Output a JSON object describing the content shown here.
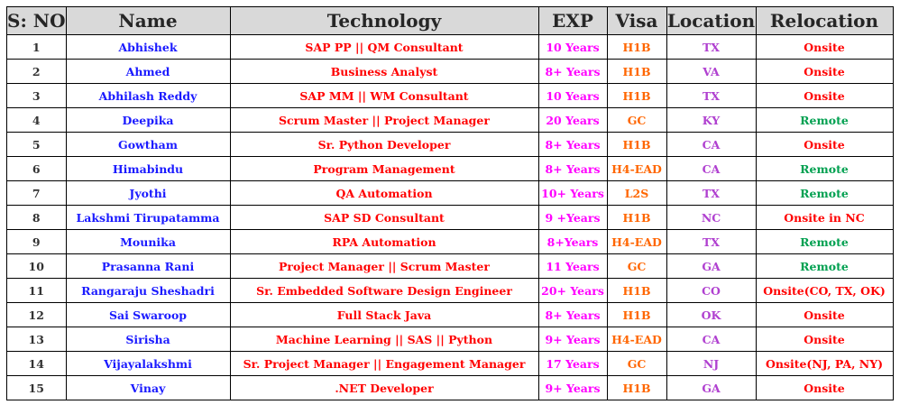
{
  "table": {
    "headers": [
      "S: NO",
      "Name",
      "Technology",
      "EXP",
      "Visa",
      "Location",
      "Relocation"
    ],
    "rows": [
      {
        "sno": "1",
        "name": "Abhishek",
        "tech": "SAP PP || QM Consultant",
        "exp": "10 Years",
        "visa": "H1B",
        "loc": "TX",
        "reloc": "Onsite",
        "reloc_type": "onsite"
      },
      {
        "sno": "2",
        "name": "Ahmed",
        "tech": "Business Analyst",
        "exp": "8+ Years",
        "visa": "H1B",
        "loc": "VA",
        "reloc": "Onsite",
        "reloc_type": "onsite"
      },
      {
        "sno": "3",
        "name": "Abhilash Reddy",
        "tech": "SAP MM || WM Consultant",
        "exp": "10 Years",
        "visa": "H1B",
        "loc": "TX",
        "reloc": "Onsite",
        "reloc_type": "onsite"
      },
      {
        "sno": "4",
        "name": "Deepika",
        "tech": "Scrum Master || Project Manager",
        "exp": "20 Years",
        "visa": "GC",
        "loc": "KY",
        "reloc": "Remote",
        "reloc_type": "remote"
      },
      {
        "sno": "5",
        "name": "Gowtham",
        "tech": "Sr. Python Developer",
        "exp": "8+ Years",
        "visa": "H1B",
        "loc": "CA",
        "reloc": "Onsite",
        "reloc_type": "onsite"
      },
      {
        "sno": "6",
        "name": "Himabindu",
        "tech": "Program Management",
        "exp": "8+ Years",
        "visa": "H4-EAD",
        "loc": "CA",
        "reloc": "Remote",
        "reloc_type": "remote"
      },
      {
        "sno": "7",
        "name": "Jyothi",
        "tech": "QA Automation",
        "exp": "10+ Years",
        "visa": "L2S",
        "loc": "TX",
        "reloc": "Remote",
        "reloc_type": "remote"
      },
      {
        "sno": "8",
        "name": "Lakshmi Tirupatamma",
        "tech": "SAP SD Consultant",
        "exp": "9 +Years",
        "visa": "H1B",
        "loc": "NC",
        "reloc": "Onsite in NC",
        "reloc_type": "onsite"
      },
      {
        "sno": "9",
        "name": "Mounika",
        "tech": "RPA Automation",
        "exp": "8+Years",
        "visa": "H4-EAD",
        "loc": "TX",
        "reloc": "Remote",
        "reloc_type": "remote"
      },
      {
        "sno": "10",
        "name": "Prasanna Rani",
        "tech": "Project Manager || Scrum Master",
        "exp": "11 Years",
        "visa": "GC",
        "loc": "GA",
        "reloc": "Remote",
        "reloc_type": "remote"
      },
      {
        "sno": "11",
        "name": "Rangaraju Sheshadri",
        "tech": "Sr. Embedded Software Design Engineer",
        "exp": "20+ Years",
        "visa": "H1B",
        "loc": "CO",
        "reloc": "Onsite(CO, TX, OK)",
        "reloc_type": "onsite"
      },
      {
        "sno": "12",
        "name": "Sai Swaroop",
        "tech": "Full Stack Java",
        "exp": "8+ Years",
        "visa": "H1B",
        "loc": "OK",
        "reloc": "Onsite",
        "reloc_type": "onsite"
      },
      {
        "sno": "13",
        "name": "Sirisha",
        "tech": "Machine Learning || SAS || Python",
        "exp": "9+ Years",
        "visa": "H4-EAD",
        "loc": "CA",
        "reloc": "Onsite",
        "reloc_type": "onsite"
      },
      {
        "sno": "14",
        "name": "Vijayalakshmi",
        "tech": "Sr. Project Manager || Engagement Manager",
        "exp": "17 Years",
        "visa": "GC",
        "loc": "NJ",
        "reloc": "Onsite(NJ, PA, NY)",
        "reloc_type": "onsite"
      },
      {
        "sno": "15",
        "name": "Vinay",
        "tech": ".NET Developer",
        "exp": "9+ Years",
        "visa": "H1B",
        "loc": "GA",
        "reloc": "Onsite",
        "reloc_type": "onsite"
      }
    ]
  },
  "colors": {
    "header_bg": "#d9d9d9",
    "name": "#1a1aff",
    "technology": "#ff0000",
    "exp": "#ff00ff",
    "visa": "#ff6600",
    "location": "#b040d0",
    "onsite": "#ff0000",
    "remote": "#00a050"
  }
}
